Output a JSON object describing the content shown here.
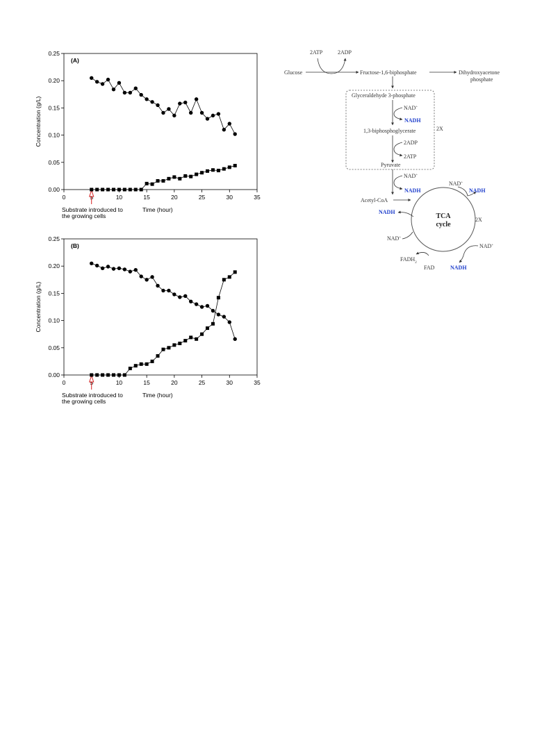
{
  "chart_data": [
    {
      "type": "line",
      "panel_label": "(A)",
      "xlabel": "Time (hour)",
      "ylabel": "Concentration (g/L)",
      "xlim": [
        0,
        35
      ],
      "ylim": [
        0,
        0.25
      ],
      "xticks": [
        "0",
        "5",
        "10",
        "15",
        "20",
        "25",
        "30",
        "35"
      ],
      "yticks": [
        "0.00",
        "0.05",
        "0.10",
        "0.15",
        "0.20",
        "0.25"
      ],
      "annotation": [
        "Substrate introduced to",
        "the growing cells"
      ],
      "annotation_x": 5,
      "grid": false,
      "series": [
        {
          "marker": "circle",
          "x": [
            5,
            6,
            7,
            8,
            9,
            10,
            11,
            12,
            13,
            14,
            15,
            16,
            17,
            18,
            19,
            20,
            21,
            22,
            23,
            24,
            25,
            26,
            27,
            28,
            29,
            30,
            31
          ],
          "values": [
            0.205,
            0.198,
            0.194,
            0.202,
            0.184,
            0.196,
            0.178,
            0.178,
            0.186,
            0.174,
            0.166,
            0.161,
            0.155,
            0.141,
            0.148,
            0.136,
            0.158,
            0.16,
            0.141,
            0.166,
            0.141,
            0.13,
            0.136,
            0.139,
            0.11,
            0.121,
            0.102
          ]
        },
        {
          "marker": "square",
          "x": [
            5,
            6,
            7,
            8,
            9,
            10,
            11,
            12,
            13,
            14,
            15,
            16,
            17,
            18,
            19,
            20,
            21,
            22,
            23,
            24,
            25,
            26,
            27,
            28,
            29,
            30,
            31
          ],
          "values": [
            0,
            0,
            0,
            0,
            0,
            0,
            0,
            0,
            0,
            0,
            0.011,
            0.01,
            0.016,
            0.016,
            0.02,
            0.023,
            0.02,
            0.025,
            0.024,
            0.028,
            0.031,
            0.034,
            0.036,
            0.035,
            0.038,
            0.041,
            0.044
          ]
        }
      ]
    },
    {
      "type": "line",
      "panel_label": "(B)",
      "xlabel": "Time (hour)",
      "ylabel": "Concentration (g/L)",
      "xlim": [
        0,
        35
      ],
      "ylim": [
        0,
        0.25
      ],
      "xticks": [
        "0",
        "5",
        "10",
        "15",
        "20",
        "25",
        "30",
        "35"
      ],
      "yticks": [
        "0.00",
        "0.05",
        "0.10",
        "0.15",
        "0.20",
        "0.25"
      ],
      "annotation": [
        "Substrate introduced to",
        "the growing cells"
      ],
      "annotation_x": 5,
      "grid": false,
      "series": [
        {
          "marker": "circle",
          "x": [
            5,
            6,
            7,
            8,
            9,
            10,
            11,
            12,
            13,
            14,
            15,
            16,
            17,
            18,
            19,
            20,
            21,
            22,
            23,
            24,
            25,
            26,
            27,
            28,
            29,
            30,
            31
          ],
          "values": [
            0.205,
            0.201,
            0.196,
            0.199,
            0.195,
            0.196,
            0.194,
            0.19,
            0.193,
            0.181,
            0.175,
            0.18,
            0.164,
            0.155,
            0.155,
            0.148,
            0.143,
            0.145,
            0.135,
            0.13,
            0.125,
            0.127,
            0.118,
            0.111,
            0.107,
            0.097,
            0.066
          ]
        },
        {
          "marker": "square",
          "x": [
            5,
            6,
            7,
            8,
            9,
            10,
            11,
            12,
            13,
            14,
            15,
            16,
            17,
            18,
            19,
            20,
            21,
            22,
            23,
            24,
            25,
            26,
            27,
            28,
            29,
            30,
            31
          ],
          "values": [
            0,
            0,
            0,
            0,
            0,
            0,
            0,
            0.012,
            0.017,
            0.02,
            0.02,
            0.025,
            0.035,
            0.047,
            0.05,
            0.055,
            0.058,
            0.063,
            0.069,
            0.066,
            0.075,
            0.086,
            0.094,
            0.142,
            0.175,
            0.18,
            0.189
          ]
        }
      ]
    }
  ],
  "pathway": {
    "atp_in": "2ATP",
    "adp_out": "2ADP",
    "glucose": "Glucose",
    "f16bp": "Fructose-1,6-biphosphate",
    "dhap_1": "Dihydroxyacetone",
    "dhap_2": "phosphate",
    "g3p": "Glyceraldehyde 3-phosphate",
    "nad_1": "NAD",
    "nadh_1": "NADH",
    "bpg": "1,3-biphosphoglycerate",
    "two_x_1": "2X",
    "adp_2": "2ADP",
    "atp_2": "2ATP",
    "pyruvate": "Pyruvate",
    "nad_2": "NAD",
    "nadh_2": "NADH",
    "acetyl_coa": "Acetyl-CoA",
    "nad_3": "NAD",
    "nadh_3": "NADH",
    "nadh_4": "NADH",
    "tca_1": "TCA",
    "tca_2": "cycle",
    "two_x_2": "2X",
    "nad_4": "NAD",
    "nad_5": "NAD",
    "fadh2": "FADH",
    "fadh2_sub": "2",
    "fad": "FAD",
    "nadh_5": "NADH",
    "plus": "+"
  }
}
